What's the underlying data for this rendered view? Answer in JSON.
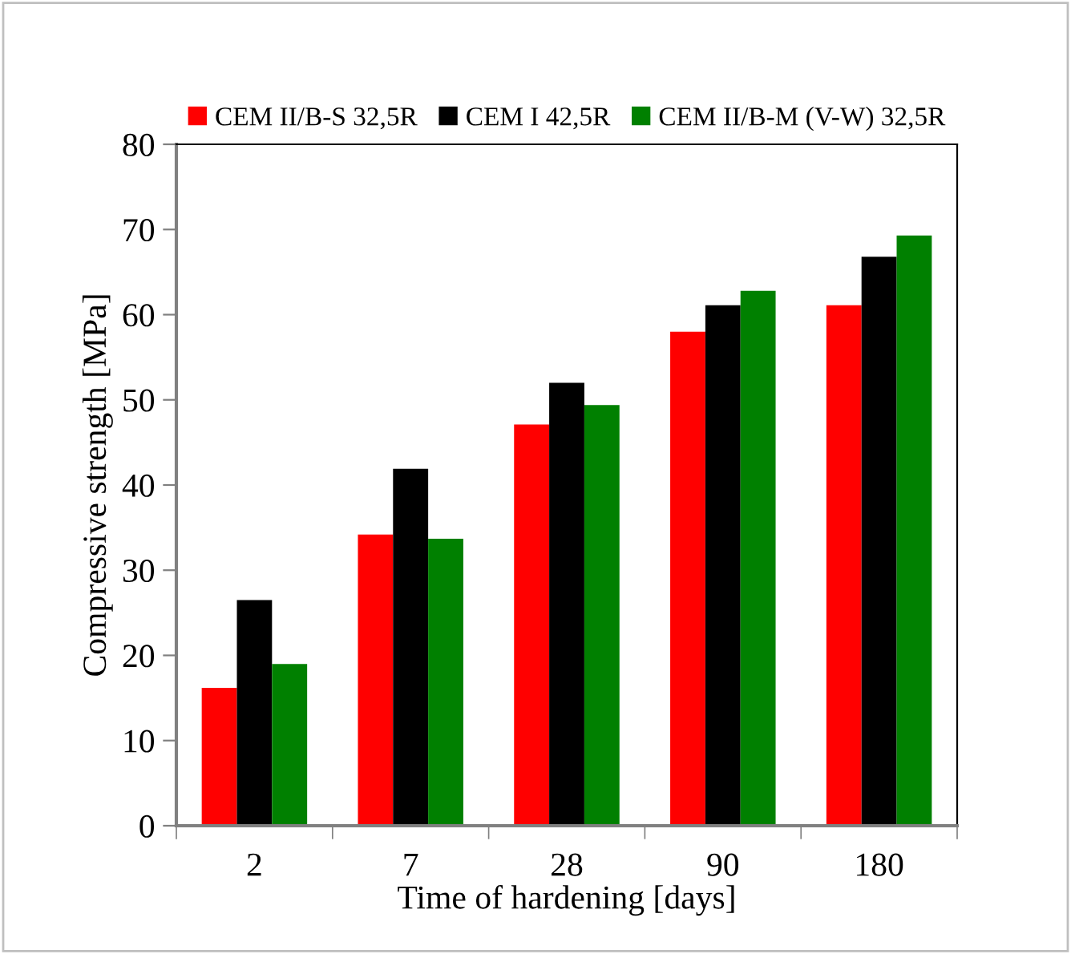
{
  "chart_data": {
    "type": "bar",
    "xlabel": "Time of hardening [days]",
    "ylabel": "Compressive strength [MPa]",
    "categories": [
      "2",
      "7",
      "28",
      "90",
      "180"
    ],
    "series": [
      {
        "name": "CEM II/B-S 32,5R",
        "color": "#ff0000",
        "values": [
          16.2,
          34.2,
          47.1,
          58.0,
          61.1
        ]
      },
      {
        "name": "CEM I 42,5R",
        "color": "#000000",
        "values": [
          26.5,
          41.9,
          52.0,
          61.1,
          66.8
        ]
      },
      {
        "name": "CEM II/B-M (V-W) 32,5R",
        "color": "#008000",
        "values": [
          19.0,
          33.7,
          49.4,
          62.8,
          69.3
        ]
      }
    ],
    "ylim": [
      0,
      80
    ],
    "yticks": [
      0,
      10,
      20,
      30,
      40,
      50,
      60,
      70,
      80
    ],
    "grid": false,
    "legend": "top"
  }
}
